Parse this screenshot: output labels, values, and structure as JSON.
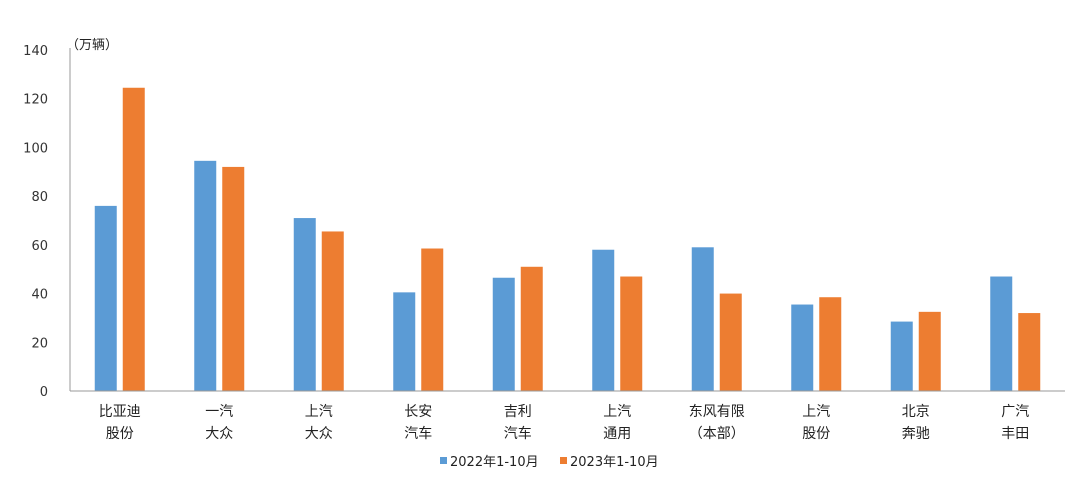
{
  "chart_data": {
    "type": "bar",
    "unit_label": "（万辆）",
    "categories": [
      [
        "比亚迪",
        "股份"
      ],
      [
        "一汽",
        "大众"
      ],
      [
        "上汽",
        "大众"
      ],
      [
        "长安",
        "汽车"
      ],
      [
        "吉利",
        "汽车"
      ],
      [
        "上汽",
        "通用"
      ],
      [
        "东风有限",
        "（本部）"
      ],
      [
        "上汽",
        "股份"
      ],
      [
        "北京",
        "奔驰"
      ],
      [
        "广汽",
        "丰田"
      ]
    ],
    "series": [
      {
        "name": "2022年1-10月",
        "color": "#5B9BD5",
        "values": [
          76,
          94.5,
          71,
          40.5,
          46.5,
          58,
          59,
          35.5,
          28.5,
          47
        ]
      },
      {
        "name": "2023年1-10月",
        "color": "#ED7D31",
        "values": [
          124.5,
          92,
          65.5,
          58.5,
          51,
          47,
          40,
          38.5,
          32.5,
          32
        ]
      }
    ],
    "ylim": [
      0,
      140
    ],
    "yticks": [
      0,
      20,
      40,
      60,
      80,
      100,
      120,
      140
    ],
    "grid": false,
    "legend_position": "bottom"
  }
}
